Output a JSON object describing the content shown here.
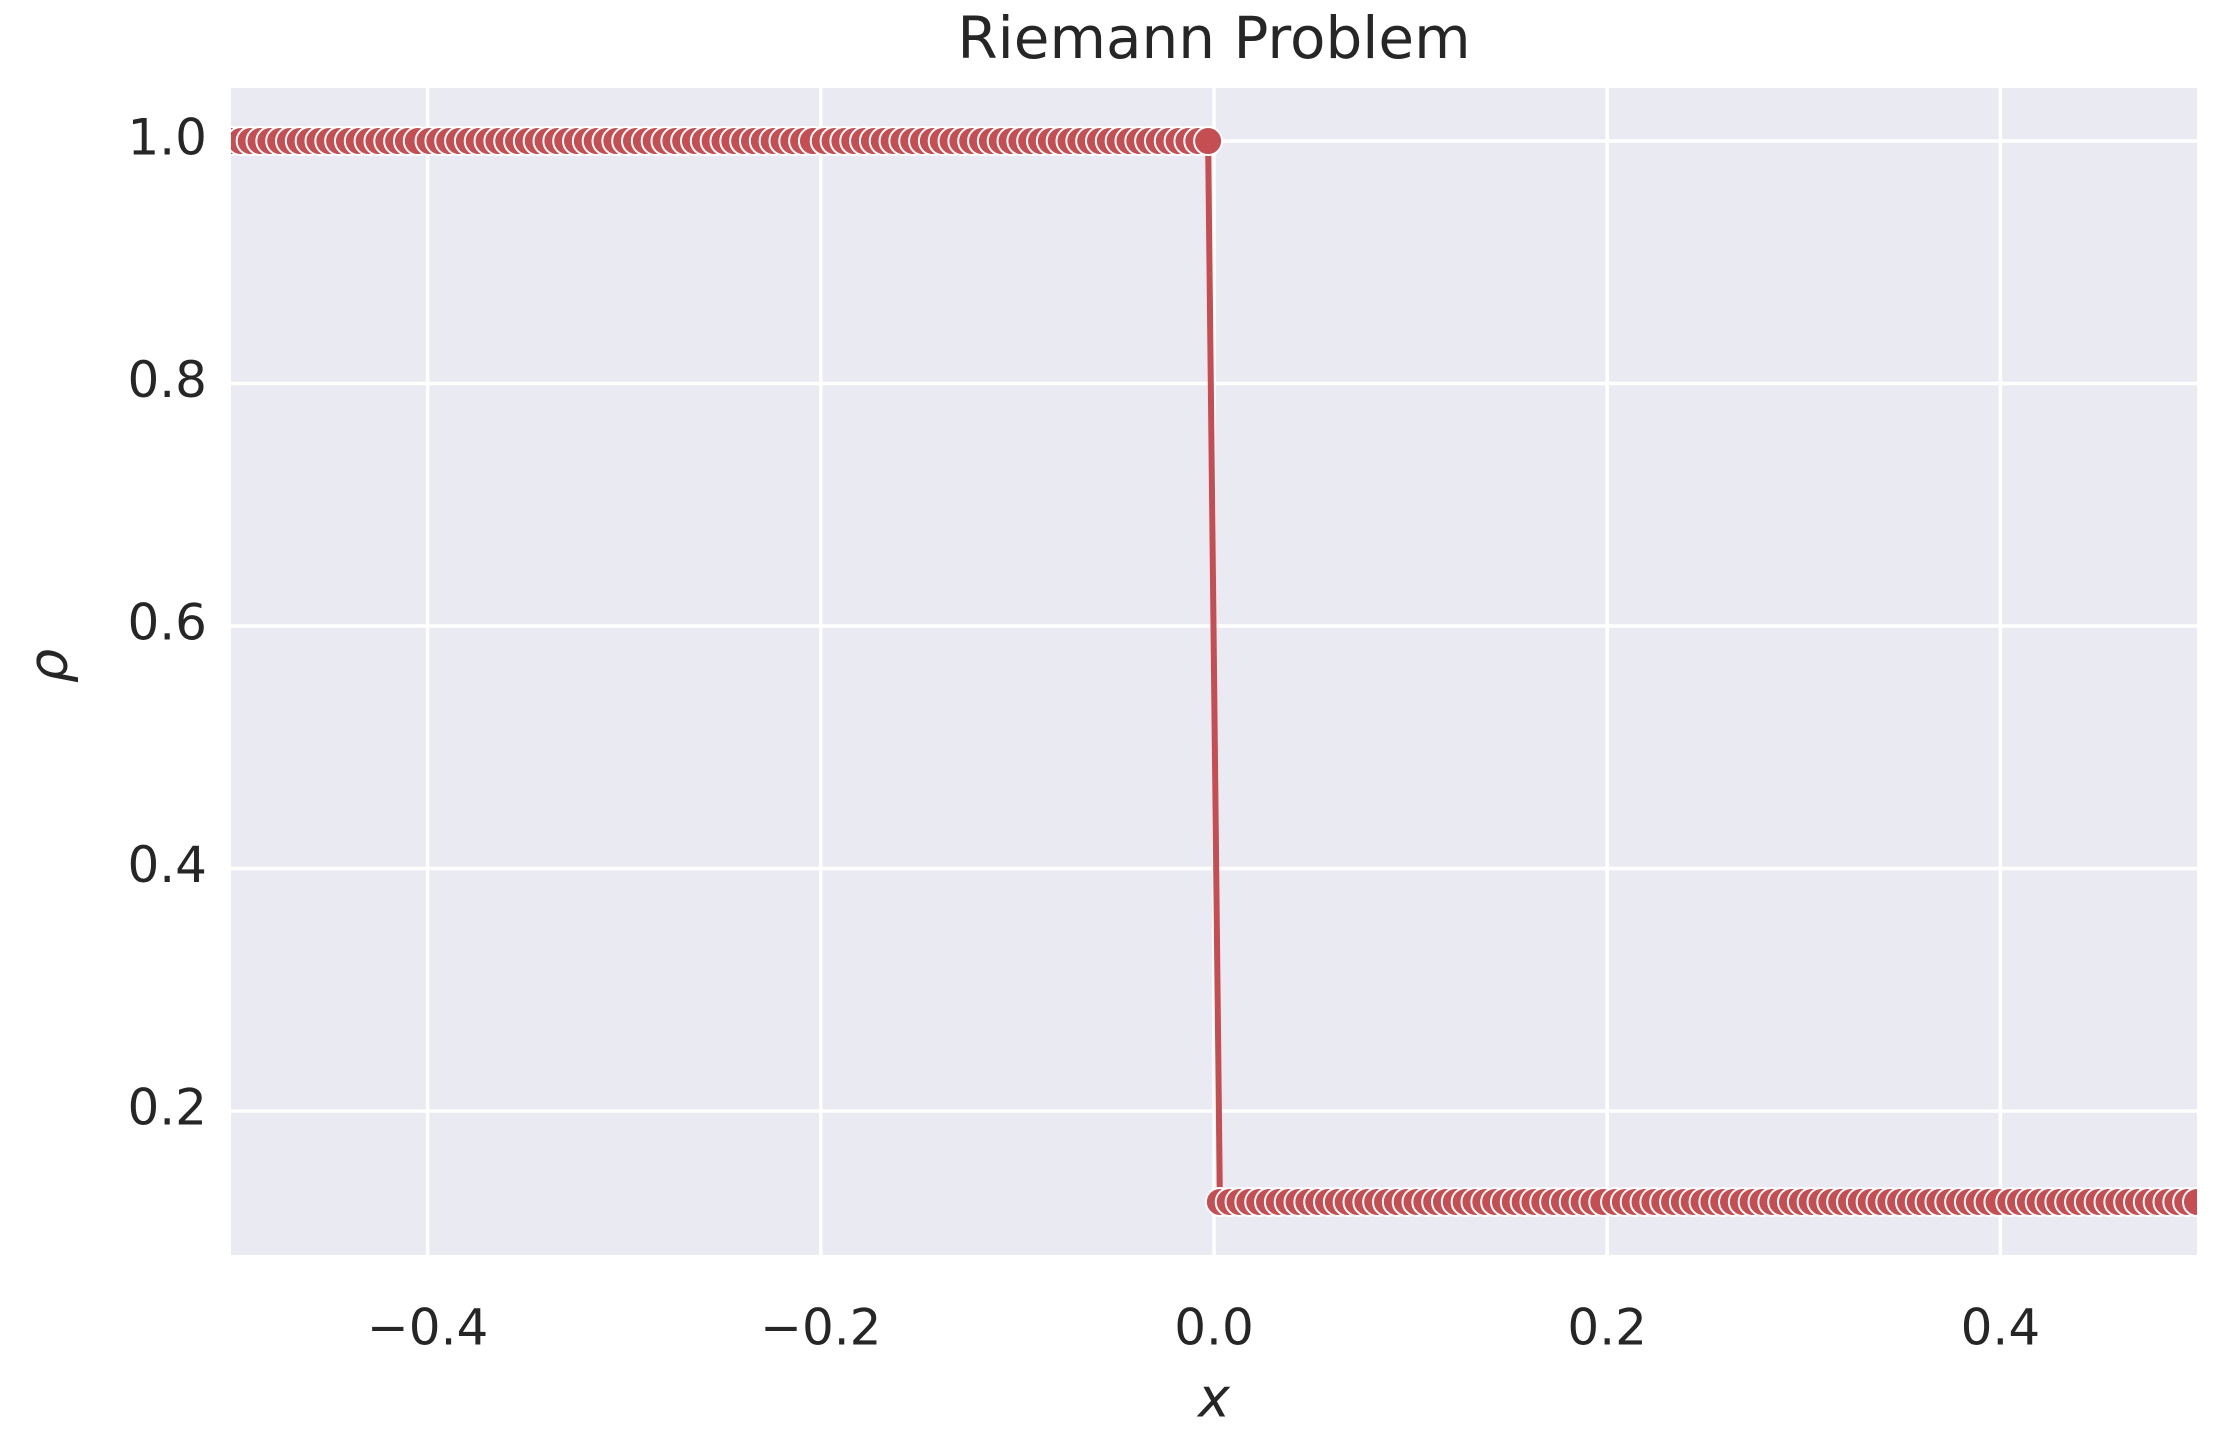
{
  "chart_data": {
    "type": "line",
    "title": "Riemann Problem",
    "xlabel": "x",
    "ylabel": "ρ",
    "x": [
      -0.5,
      -0.495,
      -0.49,
      -0.485,
      -0.48,
      -0.475,
      -0.47,
      -0.465,
      -0.46,
      -0.455,
      -0.45,
      -0.445,
      -0.44,
      -0.435,
      -0.43,
      -0.425,
      -0.42,
      -0.415,
      -0.41,
      -0.405,
      -0.399,
      -0.394,
      -0.389,
      -0.384,
      -0.379,
      -0.374,
      -0.369,
      -0.364,
      -0.359,
      -0.354,
      -0.349,
      -0.344,
      -0.339,
      -0.334,
      -0.329,
      -0.324,
      -0.319,
      -0.314,
      -0.309,
      -0.304,
      -0.299,
      -0.294,
      -0.289,
      -0.284,
      -0.279,
      -0.274,
      -0.269,
      -0.264,
      -0.259,
      -0.254,
      -0.249,
      -0.244,
      -0.239,
      -0.234,
      -0.229,
      -0.224,
      -0.219,
      -0.214,
      -0.209,
      -0.204,
      -0.198,
      -0.193,
      -0.188,
      -0.183,
      -0.178,
      -0.173,
      -0.168,
      -0.163,
      -0.158,
      -0.153,
      -0.148,
      -0.143,
      -0.138,
      -0.133,
      -0.128,
      -0.123,
      -0.118,
      -0.113,
      -0.108,
      -0.103,
      -0.098,
      -0.093,
      -0.088,
      -0.083,
      -0.078,
      -0.073,
      -0.068,
      -0.063,
      -0.058,
      -0.053,
      -0.048,
      -0.043,
      -0.038,
      -0.033,
      -0.028,
      -0.023,
      -0.018,
      -0.013,
      -0.008,
      -0.003,
      0.003,
      0.008,
      0.013,
      0.018,
      0.023,
      0.028,
      0.033,
      0.038,
      0.043,
      0.048,
      0.053,
      0.058,
      0.063,
      0.068,
      0.073,
      0.078,
      0.083,
      0.088,
      0.093,
      0.098,
      0.103,
      0.108,
      0.113,
      0.118,
      0.123,
      0.128,
      0.133,
      0.138,
      0.143,
      0.148,
      0.153,
      0.158,
      0.163,
      0.168,
      0.173,
      0.178,
      0.183,
      0.188,
      0.193,
      0.198,
      0.204,
      0.209,
      0.214,
      0.219,
      0.224,
      0.229,
      0.234,
      0.239,
      0.244,
      0.249,
      0.254,
      0.259,
      0.264,
      0.269,
      0.274,
      0.279,
      0.284,
      0.289,
      0.294,
      0.299,
      0.304,
      0.309,
      0.314,
      0.319,
      0.324,
      0.329,
      0.334,
      0.339,
      0.344,
      0.349,
      0.354,
      0.359,
      0.364,
      0.369,
      0.374,
      0.379,
      0.384,
      0.389,
      0.394,
      0.399,
      0.405,
      0.41,
      0.415,
      0.42,
      0.425,
      0.43,
      0.435,
      0.44,
      0.445,
      0.45,
      0.455,
      0.46,
      0.465,
      0.47,
      0.475,
      0.48,
      0.485,
      0.49,
      0.495,
      0.5
    ],
    "values": [
      1,
      1,
      1,
      1,
      1,
      1,
      1,
      1,
      1,
      1,
      1,
      1,
      1,
      1,
      1,
      1,
      1,
      1,
      1,
      1,
      1,
      1,
      1,
      1,
      1,
      1,
      1,
      1,
      1,
      1,
      1,
      1,
      1,
      1,
      1,
      1,
      1,
      1,
      1,
      1,
      1,
      1,
      1,
      1,
      1,
      1,
      1,
      1,
      1,
      1,
      1,
      1,
      1,
      1,
      1,
      1,
      1,
      1,
      1,
      1,
      1,
      1,
      1,
      1,
      1,
      1,
      1,
      1,
      1,
      1,
      1,
      1,
      1,
      1,
      1,
      1,
      1,
      1,
      1,
      1,
      1,
      1,
      1,
      1,
      1,
      1,
      1,
      1,
      1,
      1,
      1,
      1,
      1,
      1,
      1,
      1,
      1,
      1,
      1,
      1,
      0.125,
      0.125,
      0.125,
      0.125,
      0.125,
      0.125,
      0.125,
      0.125,
      0.125,
      0.125,
      0.125,
      0.125,
      0.125,
      0.125,
      0.125,
      0.125,
      0.125,
      0.125,
      0.125,
      0.125,
      0.125,
      0.125,
      0.125,
      0.125,
      0.125,
      0.125,
      0.125,
      0.125,
      0.125,
      0.125,
      0.125,
      0.125,
      0.125,
      0.125,
      0.125,
      0.125,
      0.125,
      0.125,
      0.125,
      0.125,
      0.125,
      0.125,
      0.125,
      0.125,
      0.125,
      0.125,
      0.125,
      0.125,
      0.125,
      0.125,
      0.125,
      0.125,
      0.125,
      0.125,
      0.125,
      0.125,
      0.125,
      0.125,
      0.125,
      0.125,
      0.125,
      0.125,
      0.125,
      0.125,
      0.125,
      0.125,
      0.125,
      0.125,
      0.125,
      0.125,
      0.125,
      0.125,
      0.125,
      0.125,
      0.125,
      0.125,
      0.125,
      0.125,
      0.125,
      0.125,
      0.125,
      0.125,
      0.125,
      0.125,
      0.125,
      0.125,
      0.125,
      0.125,
      0.125,
      0.125,
      0.125,
      0.125,
      0.125,
      0.125,
      0.125,
      0.125,
      0.125,
      0.125,
      0.125,
      0.125
    ],
    "color": "#c44e52",
    "markers": true,
    "xlim": [
      -0.5,
      0.5
    ],
    "xticks": [
      {
        "value": -0.4,
        "label": "−0.4"
      },
      {
        "value": -0.2,
        "label": "−0.2"
      },
      {
        "value": 0,
        "label": "0.0"
      },
      0.2,
      0.4
    ],
    "ylim": [
      0.08125,
      1.04375
    ],
    "yticks": [
      0.2,
      0.4,
      0.6,
      0.8,
      {
        "value": 1,
        "label": "1.0"
      }
    ],
    "grid": true
  }
}
